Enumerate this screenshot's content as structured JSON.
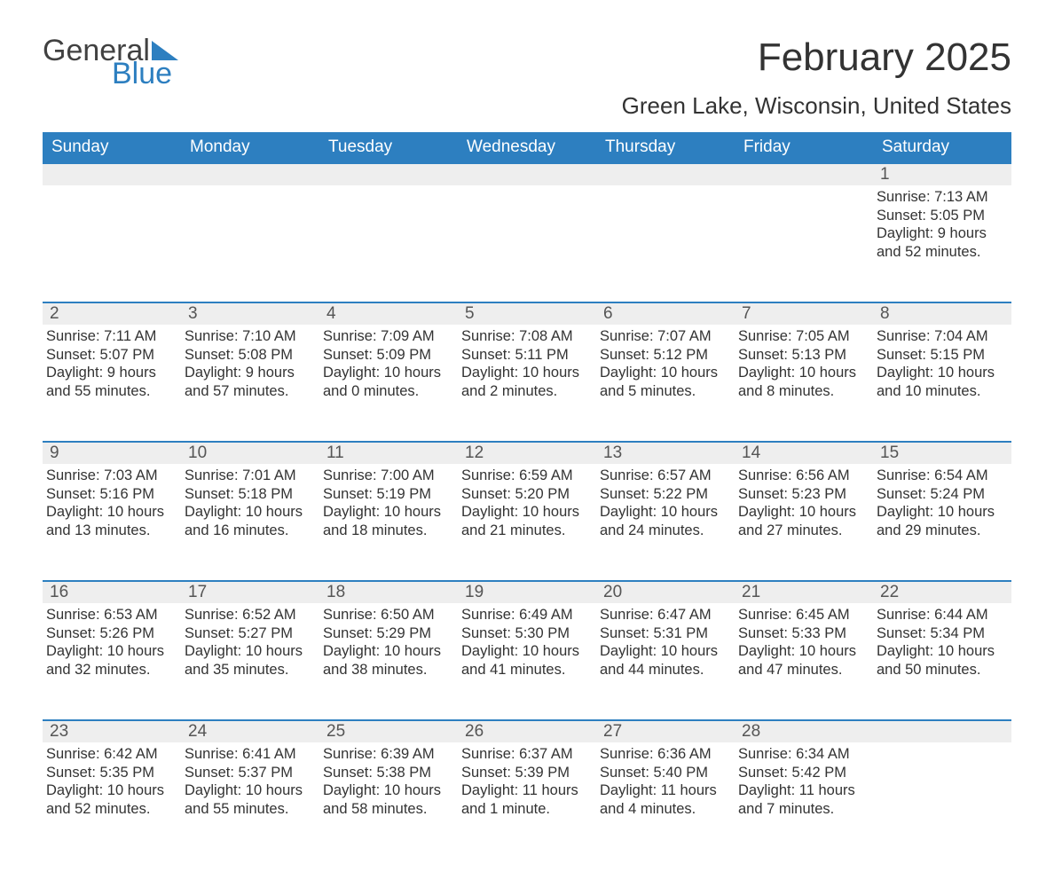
{
  "brand": {
    "word1": "General",
    "word2": "Blue",
    "word1_color": "#414141",
    "word2_color": "#2d7fc0",
    "shape_color": "#2d7fc0"
  },
  "header": {
    "month_title": "February 2025",
    "location": "Green Lake, Wisconsin, United States"
  },
  "columns": [
    "Sunday",
    "Monday",
    "Tuesday",
    "Wednesday",
    "Thursday",
    "Friday",
    "Saturday"
  ],
  "style": {
    "header_bg": "#2d7fc0",
    "header_fg": "#ffffff",
    "daynum_bg": "#eeeeee",
    "row_divider": "#2d7fc0",
    "body_font_size": 16.5,
    "title_font_size": 44,
    "location_font_size": 26,
    "weekday_font_size": 19
  },
  "weeks": [
    [
      {
        "day": "",
        "sunrise": "",
        "sunset": "",
        "daylight": ""
      },
      {
        "day": "",
        "sunrise": "",
        "sunset": "",
        "daylight": ""
      },
      {
        "day": "",
        "sunrise": "",
        "sunset": "",
        "daylight": ""
      },
      {
        "day": "",
        "sunrise": "",
        "sunset": "",
        "daylight": ""
      },
      {
        "day": "",
        "sunrise": "",
        "sunset": "",
        "daylight": ""
      },
      {
        "day": "",
        "sunrise": "",
        "sunset": "",
        "daylight": ""
      },
      {
        "day": "1",
        "sunrise": "Sunrise: 7:13 AM",
        "sunset": "Sunset: 5:05 PM",
        "daylight": "Daylight: 9 hours and 52 minutes."
      }
    ],
    [
      {
        "day": "2",
        "sunrise": "Sunrise: 7:11 AM",
        "sunset": "Sunset: 5:07 PM",
        "daylight": "Daylight: 9 hours and 55 minutes."
      },
      {
        "day": "3",
        "sunrise": "Sunrise: 7:10 AM",
        "sunset": "Sunset: 5:08 PM",
        "daylight": "Daylight: 9 hours and 57 minutes."
      },
      {
        "day": "4",
        "sunrise": "Sunrise: 7:09 AM",
        "sunset": "Sunset: 5:09 PM",
        "daylight": "Daylight: 10 hours and 0 minutes."
      },
      {
        "day": "5",
        "sunrise": "Sunrise: 7:08 AM",
        "sunset": "Sunset: 5:11 PM",
        "daylight": "Daylight: 10 hours and 2 minutes."
      },
      {
        "day": "6",
        "sunrise": "Sunrise: 7:07 AM",
        "sunset": "Sunset: 5:12 PM",
        "daylight": "Daylight: 10 hours and 5 minutes."
      },
      {
        "day": "7",
        "sunrise": "Sunrise: 7:05 AM",
        "sunset": "Sunset: 5:13 PM",
        "daylight": "Daylight: 10 hours and 8 minutes."
      },
      {
        "day": "8",
        "sunrise": "Sunrise: 7:04 AM",
        "sunset": "Sunset: 5:15 PM",
        "daylight": "Daylight: 10 hours and 10 minutes."
      }
    ],
    [
      {
        "day": "9",
        "sunrise": "Sunrise: 7:03 AM",
        "sunset": "Sunset: 5:16 PM",
        "daylight": "Daylight: 10 hours and 13 minutes."
      },
      {
        "day": "10",
        "sunrise": "Sunrise: 7:01 AM",
        "sunset": "Sunset: 5:18 PM",
        "daylight": "Daylight: 10 hours and 16 minutes."
      },
      {
        "day": "11",
        "sunrise": "Sunrise: 7:00 AM",
        "sunset": "Sunset: 5:19 PM",
        "daylight": "Daylight: 10 hours and 18 minutes."
      },
      {
        "day": "12",
        "sunrise": "Sunrise: 6:59 AM",
        "sunset": "Sunset: 5:20 PM",
        "daylight": "Daylight: 10 hours and 21 minutes."
      },
      {
        "day": "13",
        "sunrise": "Sunrise: 6:57 AM",
        "sunset": "Sunset: 5:22 PM",
        "daylight": "Daylight: 10 hours and 24 minutes."
      },
      {
        "day": "14",
        "sunrise": "Sunrise: 6:56 AM",
        "sunset": "Sunset: 5:23 PM",
        "daylight": "Daylight: 10 hours and 27 minutes."
      },
      {
        "day": "15",
        "sunrise": "Sunrise: 6:54 AM",
        "sunset": "Sunset: 5:24 PM",
        "daylight": "Daylight: 10 hours and 29 minutes."
      }
    ],
    [
      {
        "day": "16",
        "sunrise": "Sunrise: 6:53 AM",
        "sunset": "Sunset: 5:26 PM",
        "daylight": "Daylight: 10 hours and 32 minutes."
      },
      {
        "day": "17",
        "sunrise": "Sunrise: 6:52 AM",
        "sunset": "Sunset: 5:27 PM",
        "daylight": "Daylight: 10 hours and 35 minutes."
      },
      {
        "day": "18",
        "sunrise": "Sunrise: 6:50 AM",
        "sunset": "Sunset: 5:29 PM",
        "daylight": "Daylight: 10 hours and 38 minutes."
      },
      {
        "day": "19",
        "sunrise": "Sunrise: 6:49 AM",
        "sunset": "Sunset: 5:30 PM",
        "daylight": "Daylight: 10 hours and 41 minutes."
      },
      {
        "day": "20",
        "sunrise": "Sunrise: 6:47 AM",
        "sunset": "Sunset: 5:31 PM",
        "daylight": "Daylight: 10 hours and 44 minutes."
      },
      {
        "day": "21",
        "sunrise": "Sunrise: 6:45 AM",
        "sunset": "Sunset: 5:33 PM",
        "daylight": "Daylight: 10 hours and 47 minutes."
      },
      {
        "day": "22",
        "sunrise": "Sunrise: 6:44 AM",
        "sunset": "Sunset: 5:34 PM",
        "daylight": "Daylight: 10 hours and 50 minutes."
      }
    ],
    [
      {
        "day": "23",
        "sunrise": "Sunrise: 6:42 AM",
        "sunset": "Sunset: 5:35 PM",
        "daylight": "Daylight: 10 hours and 52 minutes."
      },
      {
        "day": "24",
        "sunrise": "Sunrise: 6:41 AM",
        "sunset": "Sunset: 5:37 PM",
        "daylight": "Daylight: 10 hours and 55 minutes."
      },
      {
        "day": "25",
        "sunrise": "Sunrise: 6:39 AM",
        "sunset": "Sunset: 5:38 PM",
        "daylight": "Daylight: 10 hours and 58 minutes."
      },
      {
        "day": "26",
        "sunrise": "Sunrise: 6:37 AM",
        "sunset": "Sunset: 5:39 PM",
        "daylight": "Daylight: 11 hours and 1 minute."
      },
      {
        "day": "27",
        "sunrise": "Sunrise: 6:36 AM",
        "sunset": "Sunset: 5:40 PM",
        "daylight": "Daylight: 11 hours and 4 minutes."
      },
      {
        "day": "28",
        "sunrise": "Sunrise: 6:34 AM",
        "sunset": "Sunset: 5:42 PM",
        "daylight": "Daylight: 11 hours and 7 minutes."
      },
      {
        "day": "",
        "sunrise": "",
        "sunset": "",
        "daylight": ""
      }
    ]
  ]
}
